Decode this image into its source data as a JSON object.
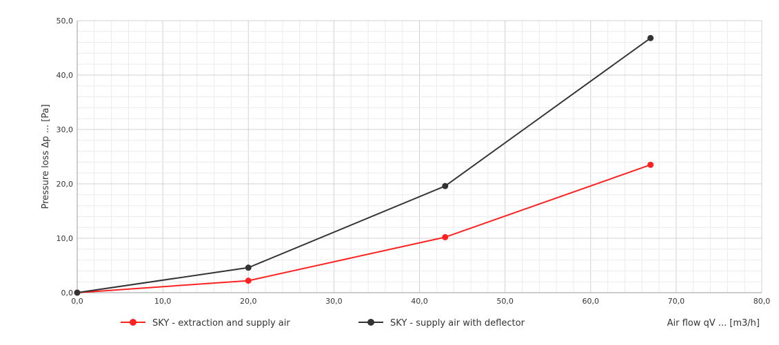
{
  "chart_data": {
    "type": "line",
    "xlabel": "Air flow qV ... [m3/h]",
    "ylabel": "Pressure loss  Δp ... [Pa]",
    "xlim": [
      0,
      80
    ],
    "ylim": [
      0,
      50
    ],
    "x_ticks": [
      "0,0",
      "10,0",
      "20,0",
      "30,0",
      "40,0",
      "50,0",
      "60,0",
      "70,0",
      "80,0"
    ],
    "y_ticks": [
      "0,0",
      "10,0",
      "20,0",
      "30,0",
      "40,0",
      "50,0"
    ],
    "grid": true,
    "legend_position": "bottom",
    "series": [
      {
        "name": "SKY - extraction and supply air",
        "color": "#ff2020",
        "x": [
          0,
          20,
          43,
          67
        ],
        "y": [
          0,
          2.2,
          10.2,
          23.5
        ]
      },
      {
        "name": "SKY - supply air with deflector",
        "color": "#333333",
        "x": [
          0,
          20,
          43,
          67
        ],
        "y": [
          0,
          4.6,
          19.6,
          46.8
        ]
      }
    ]
  }
}
